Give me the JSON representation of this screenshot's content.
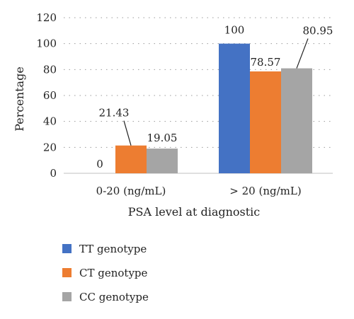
{
  "chart_data": {
    "type": "bar",
    "categories": [
      "0-20 (ng/mL)",
      "> 20 (ng/mL)"
    ],
    "series": [
      {
        "name": "TT genotype",
        "values": [
          0,
          100
        ],
        "labels": [
          "0",
          "100"
        ],
        "color": "#4472c4"
      },
      {
        "name": "CT genotype",
        "values": [
          21.43,
          78.57
        ],
        "labels": [
          "21.43",
          "78.57"
        ],
        "color": "#ed7d31"
      },
      {
        "name": "CC genotype",
        "values": [
          19.05,
          80.95
        ],
        "labels": [
          "19.05",
          "80.95"
        ],
        "color": "#a5a5a5"
      }
    ],
    "xlabel": "PSA level at diagnostic",
    "ylabel": "Percentage",
    "ylim": [
      0,
      120
    ],
    "yticks": [
      0,
      20,
      40,
      60,
      80,
      100,
      120
    ],
    "grid": "horizontal dotted",
    "legend_position": "bottom-left"
  }
}
